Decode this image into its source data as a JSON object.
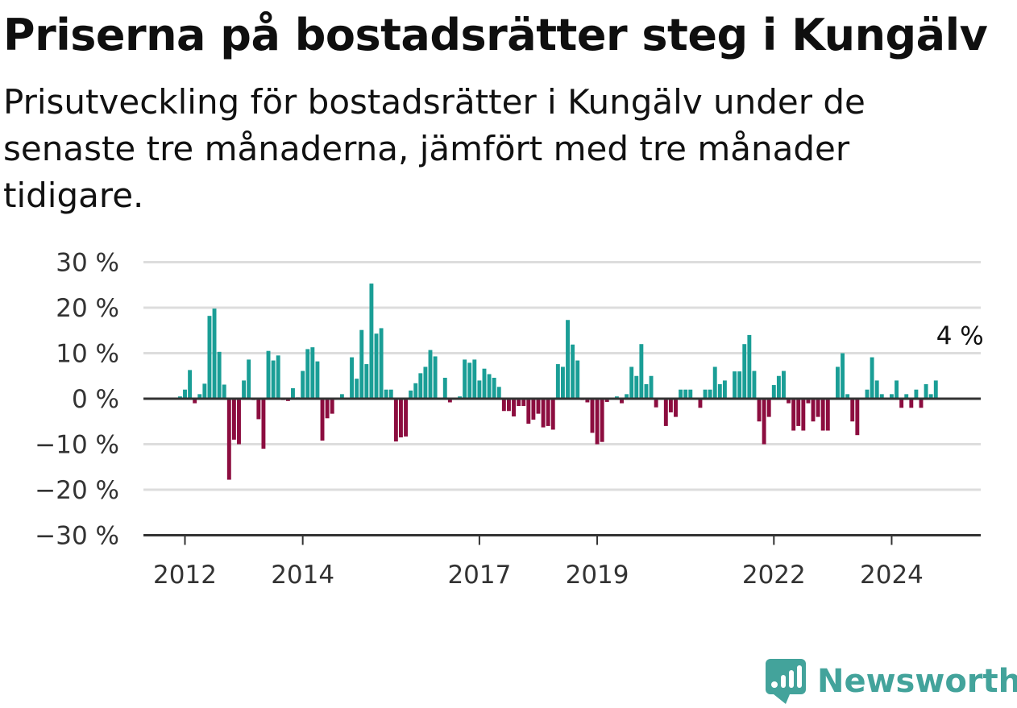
{
  "title": "Priserna på bostadsrätter steg i Kungälv",
  "subtitle": "Prisutveckling för bostadsrätter i Kungälv under de senaste tre månaderna, jämfört med tre månader tidigare.",
  "brand": {
    "name": "Newsworthy",
    "color": "#43a39b"
  },
  "chart_data": {
    "type": "bar",
    "y_unit": "%",
    "ylim": [
      -30,
      30
    ],
    "y_ticks": [
      30,
      20,
      10,
      0,
      -10,
      -20,
      -30
    ],
    "y_tick_labels": [
      "30 %",
      "20 %",
      "10 %",
      "0 %",
      "−10 %",
      "−20 %",
      "−30 %"
    ],
    "x_ticks": [
      {
        "label": "2012",
        "date": "2012-01"
      },
      {
        "label": "2014",
        "date": "2014-01"
      },
      {
        "label": "2017",
        "date": "2017-01"
      },
      {
        "label": "2019",
        "date": "2019-01"
      },
      {
        "label": "2022",
        "date": "2022-01"
      },
      {
        "label": "2024",
        "date": "2024-01"
      }
    ],
    "last_value_label": "4 %",
    "colors": {
      "positive": "#1a9e96",
      "negative": "#8c0d3f",
      "grid": "#dddddd",
      "axis": "#333333"
    },
    "grid": true,
    "series": [
      {
        "start": "2011-12",
        "values": [
          0.5,
          2,
          6.3,
          -1,
          1,
          3.3,
          18.2,
          19.8,
          10.3,
          3.1,
          -17.8,
          -9,
          -10,
          4,
          8.6,
          -0.3,
          -4.5,
          -11,
          10.5,
          8.4,
          9.5,
          -0.3,
          -0.5,
          2.3,
          0.3,
          6.1,
          10.9,
          11.3,
          8.2,
          -9.2,
          -4.3,
          -3.3,
          0,
          1,
          0,
          9.1,
          4.4,
          15.1,
          7.6,
          25.3,
          14.3,
          15.5,
          2,
          2,
          -9.4,
          -8.5,
          -8.3,
          1.8,
          3.4,
          5.6,
          7,
          10.7,
          9.3,
          0,
          4.6,
          -0.8,
          0,
          0.5,
          8.6,
          7.9,
          8.6,
          4,
          6.6,
          5.4,
          4.6,
          2.6,
          -2.7,
          -2.7,
          -3.9,
          -1.6,
          -1.6,
          -5.5,
          -4.6,
          -3.3,
          -6.3,
          -6,
          -6.8,
          7.6,
          7,
          17.3,
          11.9,
          8.4,
          -0.3,
          -0.8,
          -7.5,
          -10,
          -9.5,
          -0.7,
          -0.1,
          0.5,
          -1,
          1,
          7,
          5,
          12,
          3.2,
          5,
          -1.9,
          0,
          -6,
          -3,
          -4,
          2,
          2,
          2,
          0,
          -2,
          2,
          2,
          7,
          3.2,
          4,
          0,
          6,
          6,
          12,
          14,
          6.1,
          -5,
          -10,
          -4,
          3,
          5,
          6.1,
          -1,
          -7,
          -6,
          -7,
          -1,
          -5,
          -4,
          -7,
          -7,
          0,
          7,
          10,
          1,
          -5,
          -8,
          0,
          2,
          9.1,
          4,
          1,
          0,
          1,
          4,
          -2,
          1,
          -2,
          2,
          -2,
          3.2,
          1,
          4
        ]
      }
    ]
  }
}
